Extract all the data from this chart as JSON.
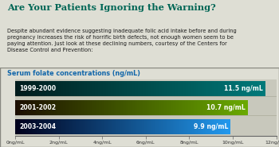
{
  "title": "Are Your Patients Ignoring the Warning?",
  "title_color": "#006655",
  "body_text": "Despite abundant evidence suggesting inadequate folic acid intake before and during\npregnancy increases the risk of horrific birth defects, not enough women seem to be\npaying attention. Just look at these declining numbers, courtesy of the Centers for\nDisease Control and Prevention:",
  "chart_subtitle": "Serum folate concentrations (ng/mL)",
  "chart_subtitle_color": "#1166aa",
  "background_color": "#deded4",
  "chart_bg_color": "#c8c8bc",
  "bar_sep_color": "#b0b0a0",
  "bars": [
    {
      "label": "1999-2000",
      "value": 11.5,
      "value_label": "11.5 ng/mL",
      "grad_start": "#001c1c",
      "grad_end": "#007a7a"
    },
    {
      "label": "2001-2002",
      "value": 10.7,
      "value_label": "10.7 ng/mL",
      "grad_start": "#1c0e00",
      "grad_end": "#6aaa00"
    },
    {
      "label": "2003-2004",
      "value": 9.9,
      "value_label": "9.9 ng/mL",
      "grad_start": "#00001c",
      "grad_end": "#2299ee"
    }
  ],
  "xmax": 12,
  "xticks": [
    0,
    2,
    4,
    6,
    8,
    10,
    12
  ],
  "xtick_labels": [
    "0ng/mL",
    "2ng/mL",
    "4ng/mL",
    "6ng/mL",
    "8ng/mL",
    "10ng/mL",
    "12ng/mL"
  ]
}
